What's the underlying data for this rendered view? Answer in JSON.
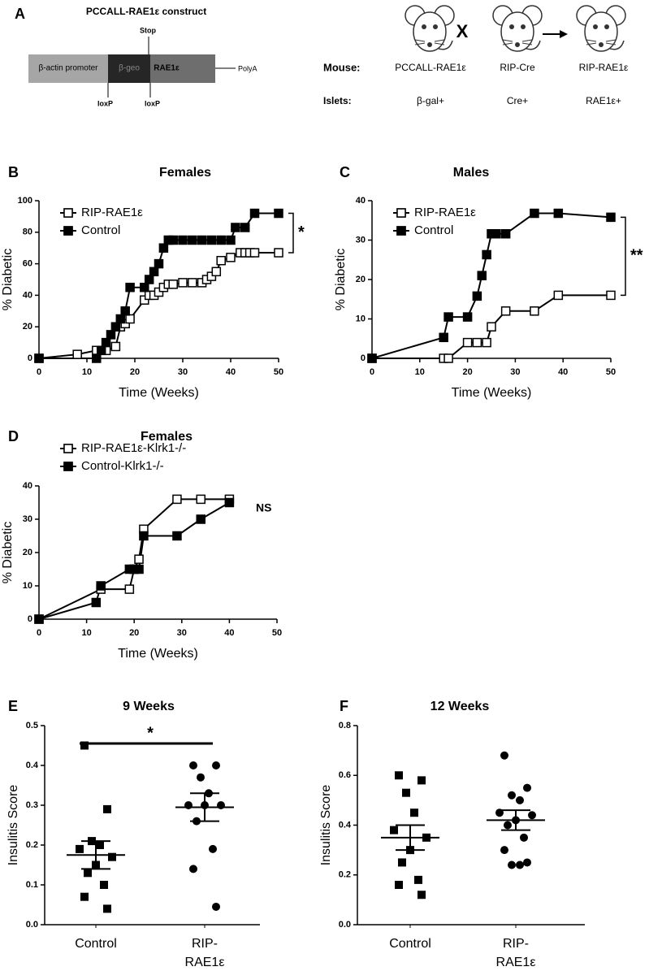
{
  "panel_a": {
    "label": "A",
    "construct_title": "PCCALL-RAE1ε construct",
    "segments": [
      "β-actin promoter",
      "β-geo",
      "RAE1ε"
    ],
    "stop": "Stop",
    "loxp": [
      "loxP",
      "loxP"
    ],
    "polya": "PolyA",
    "cross": "X",
    "mouse_label": "Mouse:",
    "islets_label": "Islets:",
    "mice": [
      "PCCALL-RAE1ε",
      "RIP-Cre",
      "RIP-RAE1ε"
    ],
    "islets": [
      "β-gal+",
      "Cre+",
      "RAE1ε+"
    ]
  },
  "chart_data": [
    {
      "type": "line",
      "panel": "B",
      "title": "Females",
      "xlabel": "Time (Weeks)",
      "ylabel": "% Diabetic",
      "xlim": [
        0,
        50
      ],
      "xticks": [
        0,
        10,
        20,
        30,
        40,
        50
      ],
      "ylim": [
        0,
        100
      ],
      "yticks": [
        0,
        20,
        40,
        60,
        80,
        100
      ],
      "annotation": "*",
      "series": [
        {
          "name": "RIP-RAE1ε",
          "color": "#000000",
          "marker": "open",
          "x": [
            0,
            8,
            12,
            14,
            16,
            17,
            18,
            19,
            22,
            23,
            24,
            25,
            26,
            27,
            28,
            30,
            32,
            34,
            35,
            36,
            37,
            38,
            40,
            42,
            43,
            44,
            45,
            50
          ],
          "values": [
            0,
            2.5,
            5,
            5,
            7.5,
            20,
            22,
            25,
            37,
            40,
            40,
            42,
            45,
            47,
            47,
            48,
            48,
            48,
            50,
            52,
            55,
            62,
            64,
            67,
            67,
            67,
            67,
            67
          ]
        },
        {
          "name": "Control",
          "color": "#000000",
          "marker": "filled",
          "x": [
            0,
            12,
            13,
            14,
            15,
            16,
            17,
            18,
            19,
            22,
            23,
            24,
            25,
            26,
            27,
            28,
            30,
            32,
            34,
            36,
            38,
            40,
            41,
            43,
            45,
            50
          ],
          "values": [
            0,
            0,
            5,
            10,
            15,
            20,
            25,
            30,
            45,
            45,
            50,
            55,
            60,
            70,
            75,
            75,
            75,
            75,
            75,
            75,
            75,
            75,
            83,
            83,
            92,
            92
          ]
        }
      ]
    },
    {
      "type": "line",
      "panel": "C",
      "title": "Males",
      "xlabel": "Time (Weeks)",
      "ylabel": "% Diabetic",
      "xlim": [
        0,
        50
      ],
      "xticks": [
        0,
        10,
        20,
        30,
        40,
        50
      ],
      "ylim": [
        0,
        40
      ],
      "yticks": [
        0,
        10,
        20,
        30,
        40
      ],
      "annotation": "**",
      "series": [
        {
          "name": "RIP-RAE1ε",
          "color": "#000000",
          "marker": "open",
          "x": [
            0,
            15,
            16,
            20,
            22,
            24,
            25,
            28,
            34,
            39,
            50
          ],
          "values": [
            0,
            0,
            0,
            4,
            4,
            4,
            8,
            12,
            12,
            16,
            16
          ]
        },
        {
          "name": "Control",
          "color": "#000000",
          "marker": "filled",
          "x": [
            0,
            15,
            16,
            20,
            22,
            23,
            24,
            25,
            26,
            28,
            34,
            39,
            50
          ],
          "values": [
            0,
            5.3,
            10.5,
            10.5,
            15.8,
            21,
            26.3,
            31.6,
            31.6,
            31.6,
            36.8,
            36.8,
            35.8
          ]
        }
      ]
    },
    {
      "type": "line",
      "panel": "D",
      "title": "Females",
      "xlabel": "Time (Weeks)",
      "ylabel": "% Diabetic",
      "xlim": [
        0,
        50
      ],
      "xticks": [
        0,
        10,
        20,
        30,
        40,
        50
      ],
      "ylim": [
        0,
        40
      ],
      "yticks": [
        0,
        10,
        20,
        30,
        40
      ],
      "annotation": "NS",
      "series": [
        {
          "name": "RIP-RAE1ε-Klrk1-/-",
          "color": "#000000",
          "marker": "open",
          "x": [
            0,
            13,
            19,
            20,
            21,
            22,
            29,
            34,
            40
          ],
          "values": [
            0,
            9,
            9,
            15,
            18,
            27,
            36,
            36,
            36
          ]
        },
        {
          "name": "Control-Klrk1-/-",
          "color": "#000000",
          "marker": "filled",
          "x": [
            0,
            12,
            13,
            19,
            20,
            21,
            22,
            29,
            34,
            40
          ],
          "values": [
            0,
            5,
            10,
            15,
            15,
            15,
            25,
            25,
            30,
            35
          ]
        }
      ]
    },
    {
      "type": "dot",
      "panel": "E",
      "title": "9 Weeks",
      "ylabel": "Insulitis Score",
      "ylim": [
        0,
        0.5
      ],
      "yticks": [
        {
          "value": 0,
          "label": "0.0"
        },
        0.1,
        0.2,
        0.3,
        0.4,
        0.5
      ],
      "annotation": "*",
      "categories": [
        [
          "Control"
        ],
        [
          "RIP-",
          "RAE1ε"
        ]
      ],
      "markers": [
        "square",
        "circle"
      ],
      "groups": [
        {
          "values": [
            0.45,
            0.29,
            0.21,
            0.2,
            0.19,
            0.17,
            0.15,
            0.13,
            0.1,
            0.07,
            0.04
          ],
          "mean": 0.175,
          "error": 0.035
        },
        {
          "values": [
            0.4,
            0.4,
            0.37,
            0.33,
            0.3,
            0.3,
            0.3,
            0.26,
            0.19,
            0.14,
            0.045
          ],
          "mean": 0.295,
          "error": 0.035
        }
      ]
    },
    {
      "type": "dot",
      "panel": "F",
      "title": "12 Weeks",
      "ylabel": "Insulitis Score",
      "ylim": [
        0,
        0.8
      ],
      "yticks": [
        {
          "value": 0,
          "label": "0.0"
        },
        0.2,
        0.4,
        0.6,
        0.8
      ],
      "categories": [
        [
          "Control"
        ],
        [
          "RIP-",
          "RAE1ε"
        ]
      ],
      "markers": [
        "square",
        "circle"
      ],
      "groups": [
        {
          "values": [
            0.6,
            0.58,
            0.53,
            0.45,
            0.38,
            0.35,
            0.3,
            0.25,
            0.18,
            0.16,
            0.12
          ],
          "mean": 0.35,
          "error": 0.05
        },
        {
          "values": [
            0.68,
            0.55,
            0.52,
            0.5,
            0.45,
            0.44,
            0.42,
            0.4,
            0.35,
            0.3,
            0.25,
            0.24,
            0.24
          ],
          "mean": 0.42,
          "error": 0.04
        }
      ]
    }
  ]
}
